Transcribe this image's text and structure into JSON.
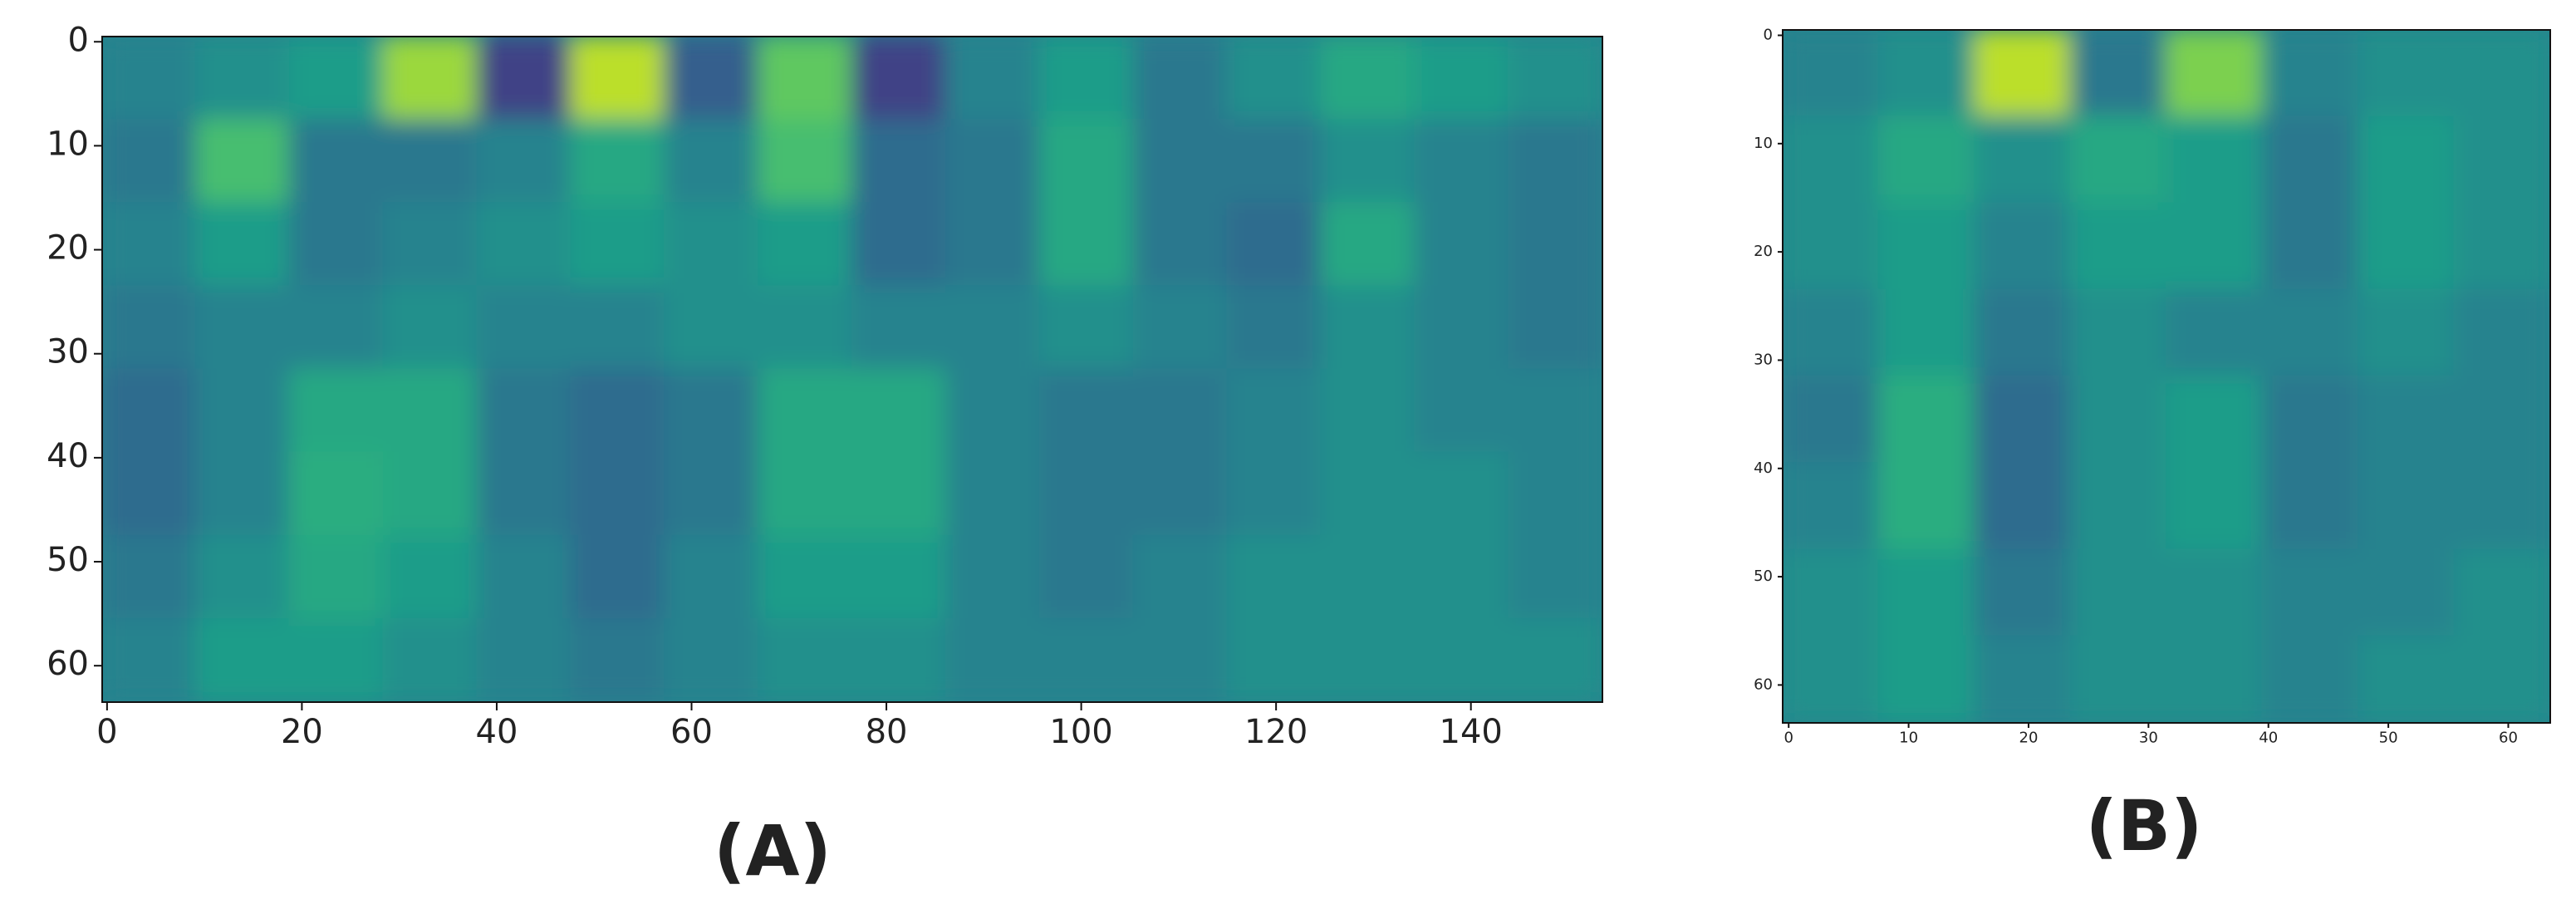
{
  "chart_data": [
    {
      "type": "heatmap",
      "title": "(A)",
      "colormap": "viridis",
      "xlim": [
        -0.5,
        153.5
      ],
      "ylim": [
        63.5,
        -0.5
      ],
      "xticks": [
        0,
        20,
        40,
        60,
        80,
        100,
        120,
        140
      ],
      "yticks": [
        0,
        10,
        20,
        30,
        40,
        50,
        60
      ],
      "z": [
        [
          0.45,
          0.5,
          0.55,
          0.85,
          0.2,
          0.9,
          0.3,
          0.75,
          0.2,
          0.45,
          0.55,
          0.4,
          0.5,
          0.6,
          0.55,
          0.5
        ],
        [
          0.4,
          0.7,
          0.4,
          0.4,
          0.45,
          0.6,
          0.45,
          0.7,
          0.35,
          0.4,
          0.6,
          0.4,
          0.4,
          0.5,
          0.45,
          0.4
        ],
        [
          0.45,
          0.55,
          0.4,
          0.45,
          0.5,
          0.55,
          0.5,
          0.55,
          0.35,
          0.4,
          0.6,
          0.4,
          0.35,
          0.6,
          0.45,
          0.4
        ],
        [
          0.4,
          0.45,
          0.45,
          0.5,
          0.45,
          0.45,
          0.5,
          0.5,
          0.45,
          0.45,
          0.5,
          0.45,
          0.4,
          0.5,
          0.45,
          0.4
        ],
        [
          0.35,
          0.45,
          0.6,
          0.6,
          0.4,
          0.35,
          0.4,
          0.6,
          0.6,
          0.45,
          0.4,
          0.4,
          0.45,
          0.5,
          0.45,
          0.45
        ],
        [
          0.35,
          0.45,
          0.62,
          0.6,
          0.4,
          0.35,
          0.4,
          0.6,
          0.6,
          0.45,
          0.4,
          0.4,
          0.45,
          0.5,
          0.5,
          0.45
        ],
        [
          0.4,
          0.5,
          0.6,
          0.55,
          0.45,
          0.35,
          0.45,
          0.55,
          0.55,
          0.45,
          0.4,
          0.45,
          0.5,
          0.5,
          0.5,
          0.45
        ],
        [
          0.45,
          0.55,
          0.55,
          0.5,
          0.45,
          0.4,
          0.45,
          0.5,
          0.5,
          0.45,
          0.45,
          0.45,
          0.5,
          0.5,
          0.5,
          0.5
        ]
      ]
    },
    {
      "type": "heatmap",
      "title": "(B)",
      "colormap": "viridis",
      "xlim": [
        -0.5,
        63.5
      ],
      "ylim": [
        63.5,
        -0.5
      ],
      "xticks": [
        0,
        10,
        20,
        30,
        40,
        50,
        60
      ],
      "yticks": [
        0,
        10,
        20,
        30,
        40,
        50,
        60
      ],
      "z": [
        [
          0.45,
          0.5,
          0.9,
          0.4,
          0.8,
          0.45,
          0.5,
          0.5
        ],
        [
          0.5,
          0.6,
          0.5,
          0.6,
          0.55,
          0.4,
          0.55,
          0.5
        ],
        [
          0.5,
          0.55,
          0.45,
          0.55,
          0.55,
          0.4,
          0.55,
          0.5
        ],
        [
          0.45,
          0.55,
          0.4,
          0.5,
          0.45,
          0.45,
          0.5,
          0.45
        ],
        [
          0.4,
          0.62,
          0.35,
          0.5,
          0.55,
          0.4,
          0.45,
          0.45
        ],
        [
          0.45,
          0.62,
          0.35,
          0.5,
          0.55,
          0.4,
          0.45,
          0.45
        ],
        [
          0.5,
          0.55,
          0.4,
          0.5,
          0.5,
          0.45,
          0.45,
          0.5
        ],
        [
          0.5,
          0.55,
          0.45,
          0.5,
          0.5,
          0.45,
          0.5,
          0.5
        ]
      ]
    }
  ]
}
